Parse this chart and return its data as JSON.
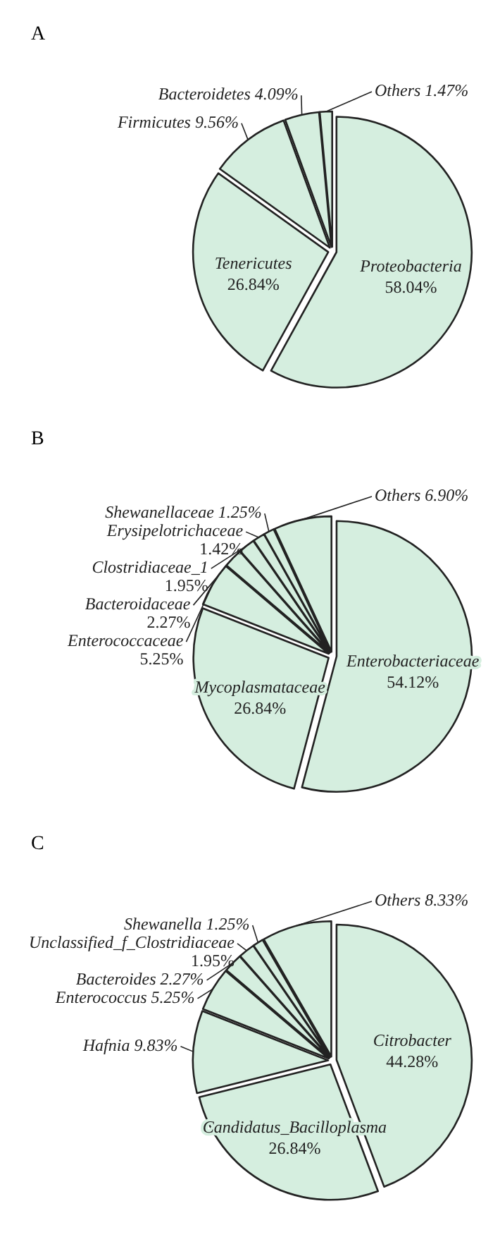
{
  "chart_data": [
    {
      "type": "pie",
      "title": "A",
      "categories": [
        "Proteobacteria",
        "Tenericutes",
        "Firmicutes",
        "Bacteroidetes",
        "Others"
      ],
      "values": [
        58.04,
        26.84,
        9.56,
        4.09,
        1.47
      ],
      "value_labels": [
        "58.04%",
        "26.84%",
        "9.56%",
        "4.09%",
        "1.47%"
      ],
      "colors": [
        "#d5eedf",
        "#d5eedf",
        "#d5eedf",
        "#d5eedf",
        "#d5eedf"
      ]
    },
    {
      "type": "pie",
      "title": "B",
      "categories": [
        "Enterobacteriaceae",
        "Mycoplasmataceae",
        "Enterococcaceae",
        "Bacteroidaceae",
        "Clostridiaceae_1",
        "Erysipelotrichaceae",
        "Shewanellaceae",
        "Others"
      ],
      "values": [
        54.12,
        26.84,
        5.25,
        2.27,
        1.95,
        1.42,
        1.25,
        6.9
      ],
      "value_labels": [
        "54.12%",
        "26.84%",
        "5.25%",
        "2.27%",
        "1.95%",
        "1.42%",
        "1.25%",
        "6.90%"
      ],
      "colors": [
        "#d5eedf",
        "#d5eedf",
        "#d5eedf",
        "#d5eedf",
        "#d5eedf",
        "#d5eedf",
        "#d5eedf",
        "#d5eedf"
      ]
    },
    {
      "type": "pie",
      "title": "C",
      "categories": [
        "Citrobacter",
        "Candidatus_Bacilloplasma",
        "Hafnia",
        "Enterococcus",
        "Bacteroides",
        "Unclassified_f_Clostridiaceae",
        "Shewanella",
        "Others"
      ],
      "values": [
        44.28,
        26.84,
        9.83,
        5.25,
        2.27,
        1.95,
        1.25,
        8.33
      ],
      "value_labels": [
        "44.28%",
        "26.84%",
        "9.83%",
        "5.25%",
        "2.27%",
        "1.95%",
        "1.25%",
        "8.33%"
      ],
      "colors": [
        "#d5eedf",
        "#d5eedf",
        "#d5eedf",
        "#d5eedf",
        "#d5eedf",
        "#d5eedf",
        "#d5eedf",
        "#d5eedf"
      ]
    }
  ]
}
